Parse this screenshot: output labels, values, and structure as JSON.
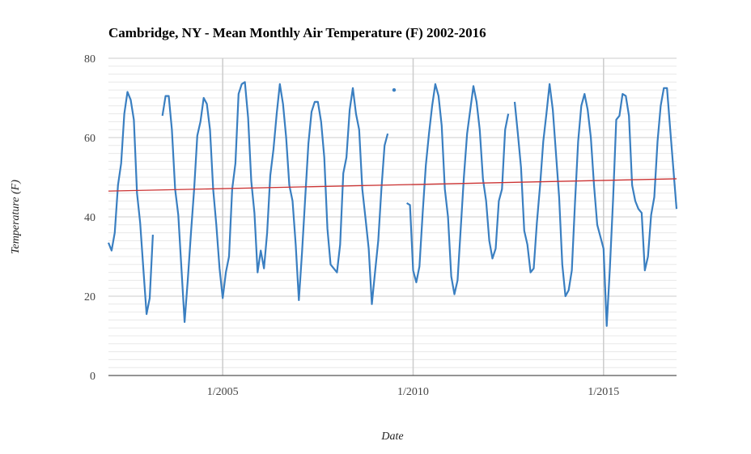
{
  "chart_data": {
    "type": "line",
    "title": "Cambridge, NY - Mean Monthly Air Temperature (F) 2002-2016",
    "xlabel": "Date",
    "ylabel": "Temperature (F)",
    "ylim": [
      0,
      80
    ],
    "yticks": [
      0,
      20,
      40,
      60,
      80
    ],
    "xlim": [
      "2002-01",
      "2016-12"
    ],
    "xticks": [
      {
        "date": "2005-01",
        "label": "1/2005"
      },
      {
        "date": "2010-01",
        "label": "1/2010"
      },
      {
        "date": "2015-01",
        "label": "1/2015"
      }
    ],
    "grid": true,
    "series": [
      {
        "type": "line",
        "color": "#3a7fc1",
        "x": [
          "2002-01",
          "2002-02",
          "2002-03",
          "2002-04",
          "2002-05",
          "2002-06",
          "2002-07",
          "2002-08",
          "2002-09",
          "2002-10",
          "2002-11",
          "2002-12",
          "2003-01",
          "2003-02",
          "2003-03",
          "2003-04",
          "2003-05",
          "2003-06",
          "2003-07",
          "2003-08",
          "2003-09",
          "2003-10",
          "2003-11",
          "2003-12",
          "2004-01",
          "2004-02",
          "2004-03",
          "2004-04",
          "2004-05",
          "2004-06",
          "2004-07",
          "2004-08",
          "2004-09",
          "2004-10",
          "2004-11",
          "2004-12",
          "2005-01",
          "2005-02",
          "2005-03",
          "2005-04",
          "2005-05",
          "2005-06",
          "2005-07",
          "2005-08",
          "2005-09",
          "2005-10",
          "2005-11",
          "2005-12",
          "2006-01",
          "2006-02",
          "2006-03",
          "2006-04",
          "2006-05",
          "2006-06",
          "2006-07",
          "2006-08",
          "2006-09",
          "2006-10",
          "2006-11",
          "2006-12",
          "2007-01",
          "2007-02",
          "2007-03",
          "2007-04",
          "2007-05",
          "2007-06",
          "2007-07",
          "2007-08",
          "2007-09",
          "2007-10",
          "2007-11",
          "2007-12",
          "2008-01",
          "2008-02",
          "2008-03",
          "2008-04",
          "2008-05",
          "2008-06",
          "2008-07",
          "2008-08",
          "2008-09",
          "2008-10",
          "2008-11",
          "2008-12",
          "2009-01",
          "2009-02",
          "2009-03",
          "2009-04",
          "2009-05",
          "2009-06",
          "2009-07",
          "2009-08",
          "2009-09",
          "2009-10",
          "2009-11",
          "2009-12",
          "2010-01",
          "2010-02",
          "2010-03",
          "2010-04",
          "2010-05",
          "2010-06",
          "2010-07",
          "2010-08",
          "2010-09",
          "2010-10",
          "2010-11",
          "2010-12",
          "2011-01",
          "2011-02",
          "2011-03",
          "2011-04",
          "2011-05",
          "2011-06",
          "2011-07",
          "2011-08",
          "2011-09",
          "2011-10",
          "2011-11",
          "2011-12",
          "2012-01",
          "2012-02",
          "2012-03",
          "2012-04",
          "2012-05",
          "2012-06",
          "2012-07",
          "2012-08",
          "2012-09",
          "2012-10",
          "2012-11",
          "2012-12",
          "2013-01",
          "2013-02",
          "2013-03",
          "2013-04",
          "2013-05",
          "2013-06",
          "2013-07",
          "2013-08",
          "2013-09",
          "2013-10",
          "2013-11",
          "2013-12",
          "2014-01",
          "2014-02",
          "2014-03",
          "2014-04",
          "2014-05",
          "2014-06",
          "2014-07",
          "2014-08",
          "2014-09",
          "2014-10",
          "2014-11",
          "2014-12",
          "2015-01",
          "2015-02",
          "2015-03",
          "2015-04",
          "2015-05",
          "2015-06",
          "2015-07",
          "2015-08",
          "2015-09",
          "2015-10",
          "2015-11",
          "2015-12",
          "2016-01",
          "2016-02",
          "2016-03",
          "2016-04",
          "2016-05",
          "2016-06",
          "2016-07",
          "2016-08",
          "2016-09",
          "2016-10",
          "2016-11",
          "2016-12"
        ],
        "y": [
          33.5,
          31.5,
          36,
          48,
          53.5,
          66,
          71.5,
          69.5,
          64.5,
          46,
          38.5,
          27,
          15.5,
          19.5,
          35.5,
          null,
          null,
          65.5,
          70.5,
          70.5,
          62,
          47,
          40.5,
          27,
          13.5,
          24,
          36,
          47,
          60.5,
          64,
          70,
          68.5,
          62,
          47,
          38,
          27,
          19.5,
          26,
          30,
          47,
          53.5,
          71,
          73.5,
          74,
          65,
          49,
          41,
          26,
          31.5,
          27,
          36,
          50.5,
          57,
          66,
          73.5,
          68.5,
          60,
          48,
          44,
          33,
          19,
          31,
          45,
          58.5,
          66.5,
          69,
          69,
          64,
          55,
          37,
          28,
          27,
          26,
          33,
          51,
          55,
          67,
          72.5,
          66,
          62,
          47,
          39.5,
          32,
          18,
          26,
          34,
          47,
          58,
          61,
          null,
          72,
          null,
          null,
          null,
          43.5,
          43,
          26.5,
          23.5,
          27.5,
          41,
          53,
          61,
          68,
          73.5,
          70.5,
          63,
          47,
          40,
          25,
          20.5,
          24,
          37,
          50,
          61,
          67,
          73,
          69,
          62,
          49.5,
          44,
          34,
          29.5,
          32,
          44,
          47,
          62,
          66,
          null,
          69,
          61,
          52.5,
          36.5,
          33,
          26,
          27,
          38.5,
          48,
          59,
          66,
          73.5,
          67,
          56,
          45,
          28,
          20,
          21.5,
          26.5,
          43.5,
          59,
          68,
          71,
          67,
          60,
          48,
          38,
          35,
          32,
          12.5,
          27,
          44.5,
          64.5,
          65.5,
          71,
          70.5,
          65.5,
          48,
          44,
          42,
          41,
          26.5,
          30,
          40.5,
          45,
          59,
          68,
          72.5,
          72.5,
          62,
          52,
          42
        ]
      },
      {
        "type": "trendline",
        "color": "#cc3333",
        "x": [
          "2002-01",
          "2016-12"
        ],
        "y": [
          46.5,
          49.6
        ]
      }
    ]
  }
}
